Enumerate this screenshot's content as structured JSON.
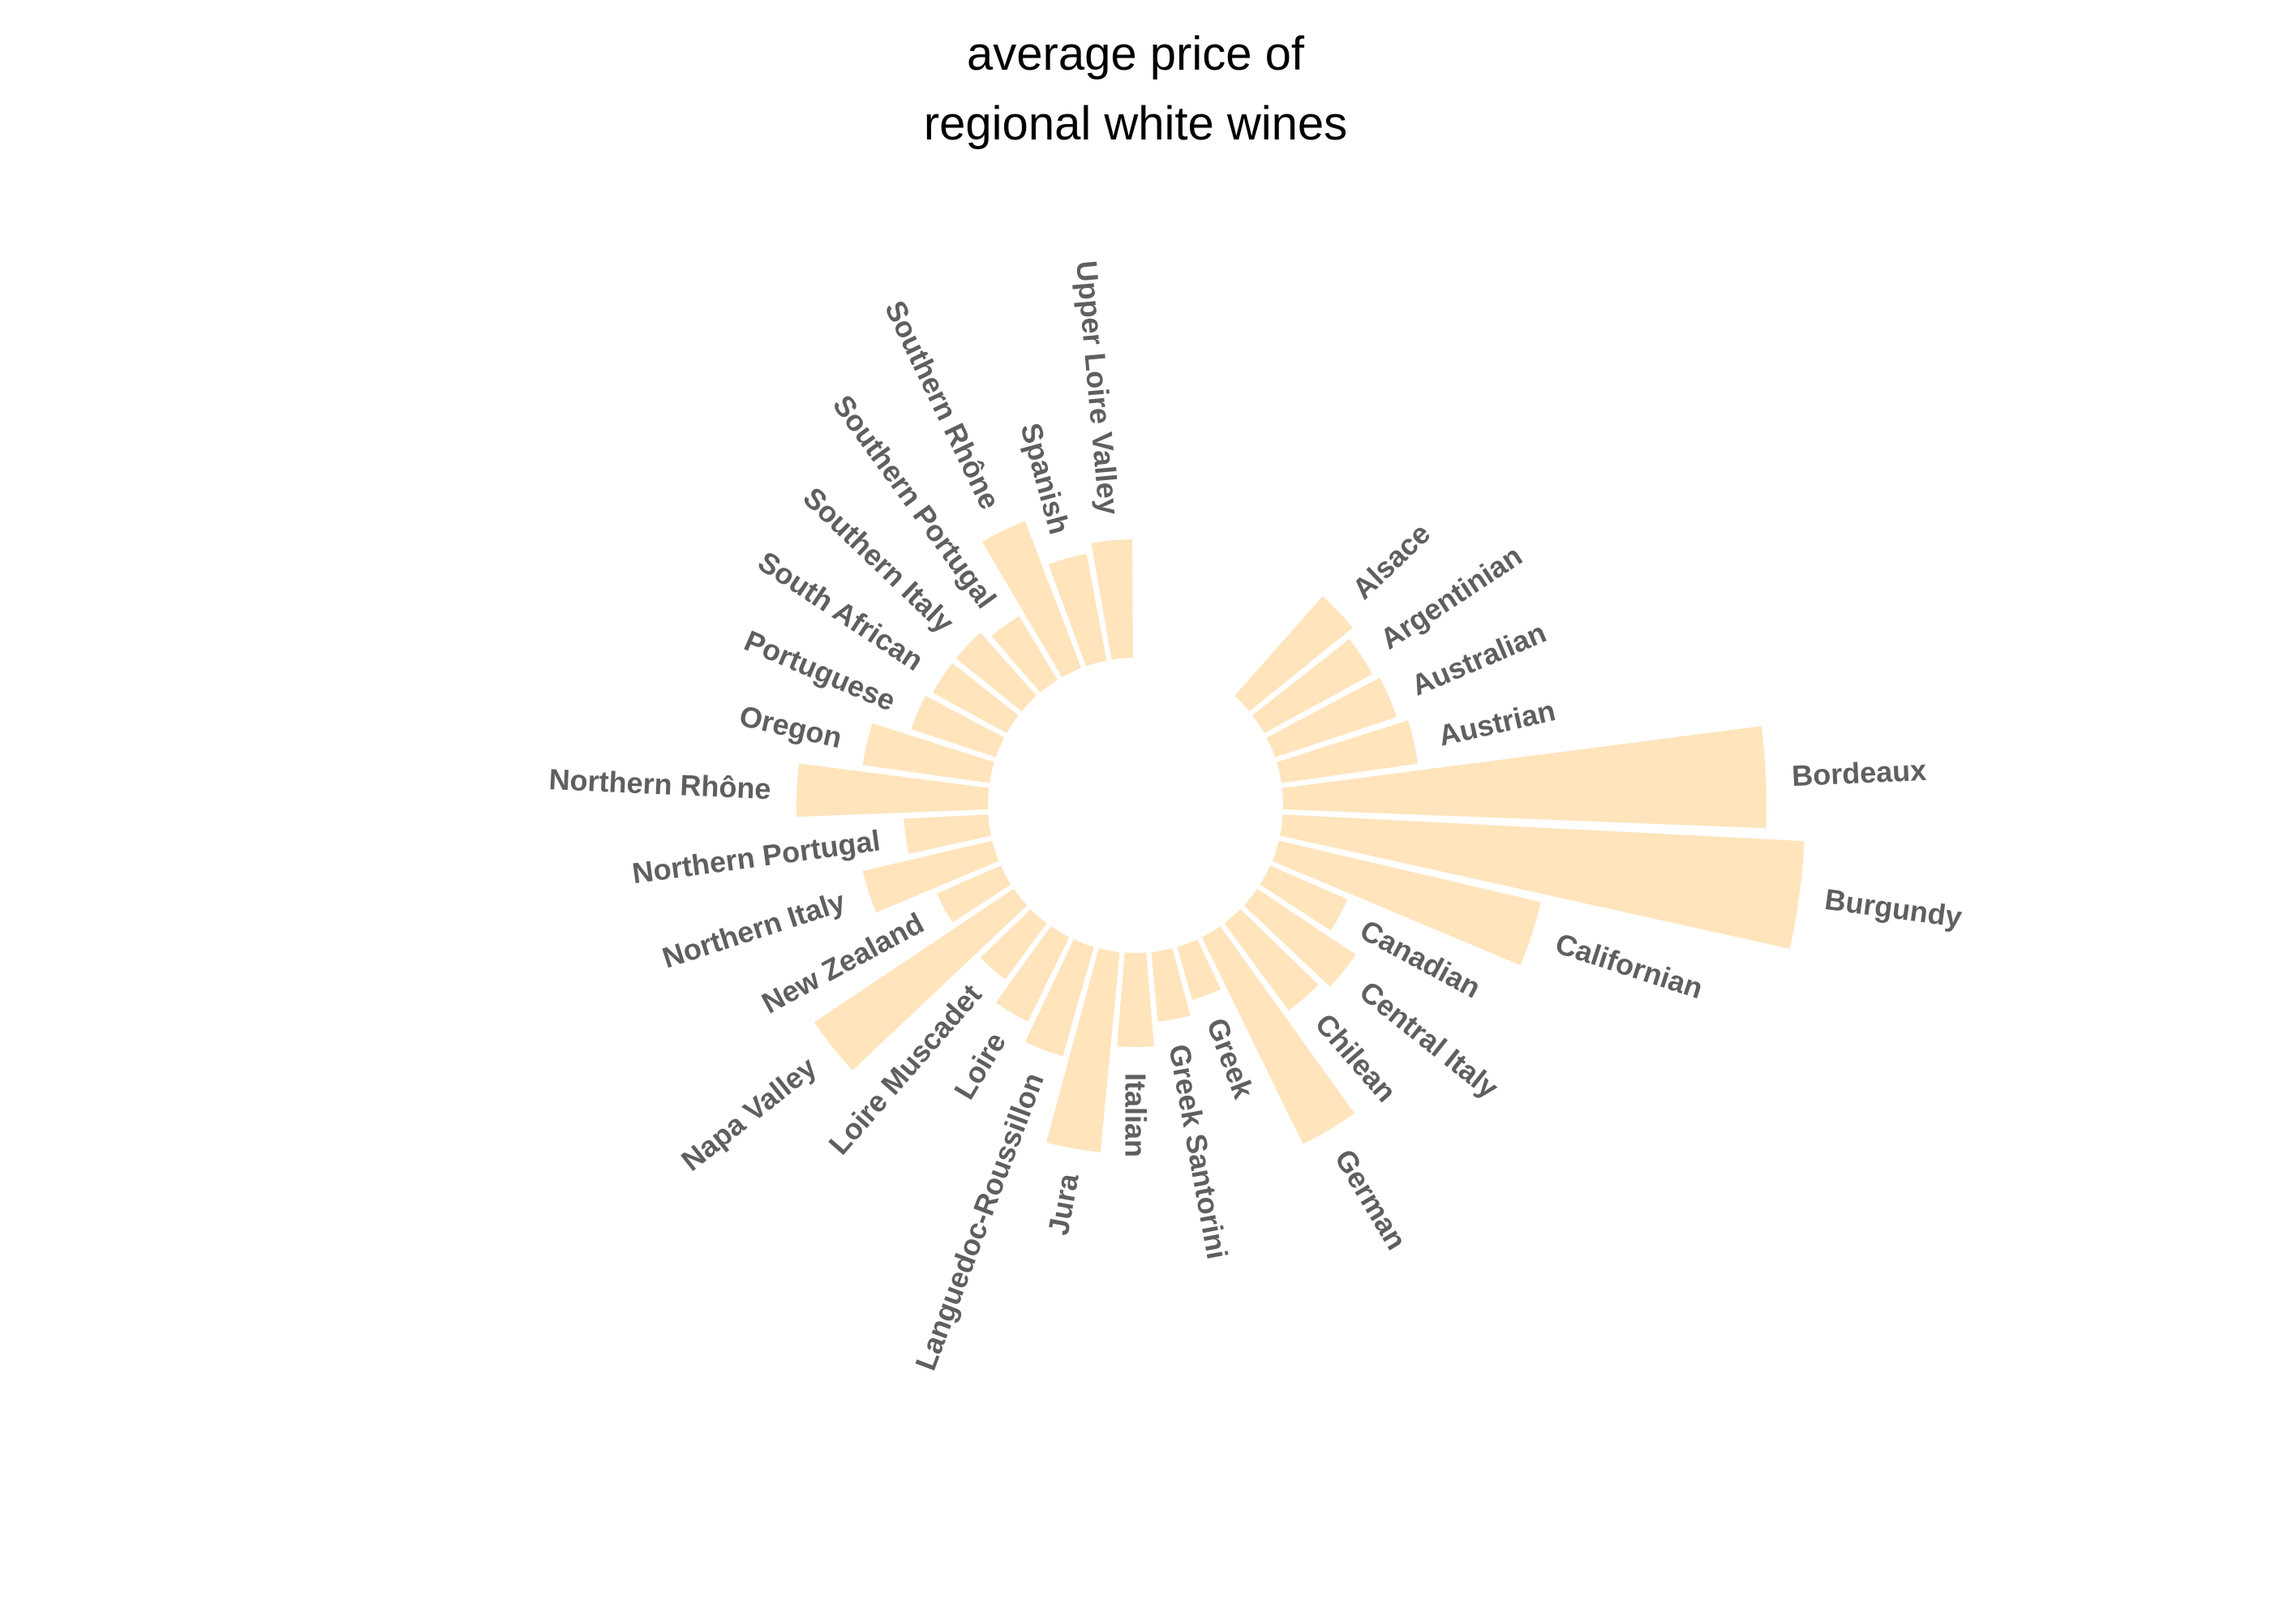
{
  "chart_data": {
    "type": "bar",
    "coordinate_system": "polar",
    "title": "average price of\nregional white wines",
    "title_lines": [
      "average price of",
      "regional white wines"
    ],
    "bar_color": "#ffe4bc",
    "label_color": "#5f5f5f",
    "empty_slots_before_first": 4,
    "start_angle_deg": 0,
    "ymin": -30,
    "rmax": 113,
    "categories": [
      "Alsace",
      "Argentinian",
      "Australian",
      "Austrian",
      "Bordeaux",
      "Burgundy",
      "Californian",
      "Canadian",
      "Central Italy",
      "Chilean",
      "German",
      "Greek",
      "Greek Santorini",
      "Italian",
      "Jura",
      "Languedoc-Roussillon",
      "Loire",
      "Loire Muscadet",
      "Napa Valley",
      "New Zealand",
      "Northern Italy",
      "Northern Portugal",
      "Northern Rhône",
      "Oregon",
      "Portuguese",
      "South African",
      "Southern Italy",
      "Southern Portugal",
      "Southern Rhône",
      "Spanish",
      "Upper Loire Valley"
    ],
    "values": [
      28,
      26,
      27,
      29,
      100,
      108,
      56,
      18,
      25,
      23,
      48,
      12,
      15,
      20,
      42,
      24,
      20,
      15,
      50,
      15,
      28,
      18,
      40,
      27,
      19,
      18,
      18,
      16,
      33,
      23,
      25
    ],
    "grid": false,
    "xlabel": "",
    "ylabel": ""
  }
}
